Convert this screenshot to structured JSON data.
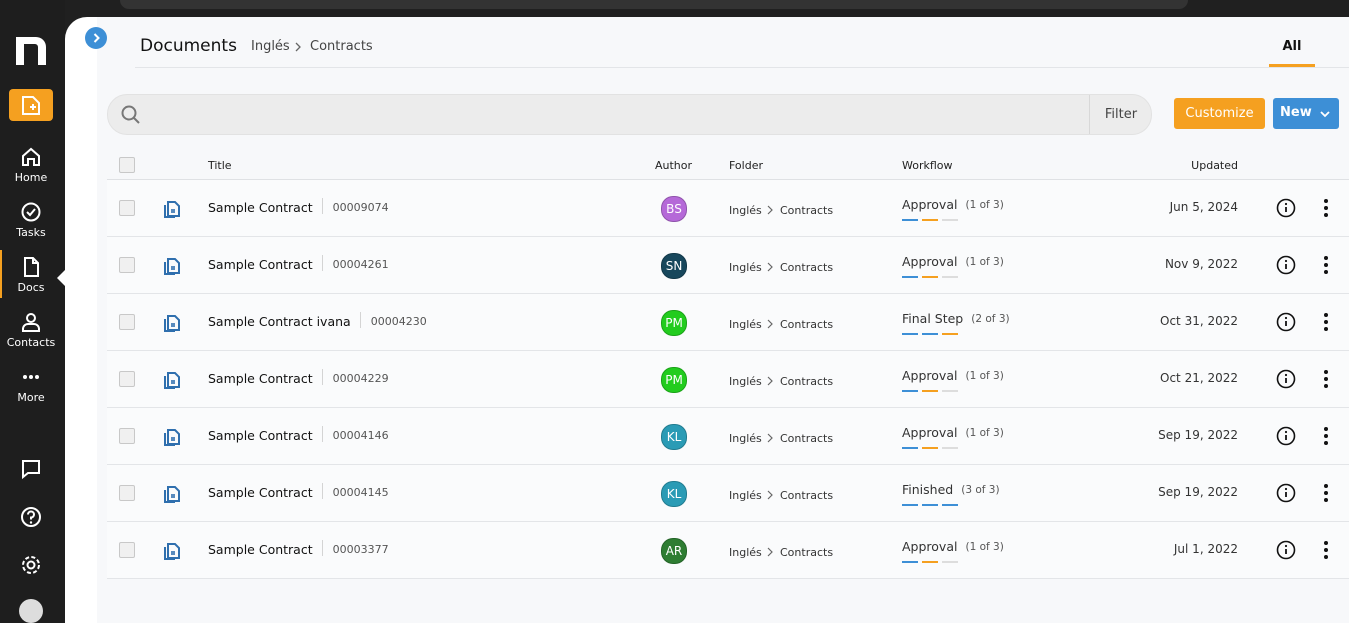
{
  "sidebar": {
    "items": [
      "Home",
      "Tasks",
      "Docs",
      "Contacts",
      "More"
    ],
    "active": 2
  },
  "header": {
    "title": "Documents",
    "breadcrumb": [
      "Inglés",
      "Contracts"
    ],
    "tab": "All"
  },
  "toolbar": {
    "filter": "Filter",
    "customize": "Customize",
    "new": "New"
  },
  "table": {
    "columns": [
      "Title",
      "Author",
      "Folder",
      "Workflow",
      "Updated"
    ],
    "rows": [
      {
        "title": "Sample Contract",
        "number": "00009074",
        "author": "BS",
        "author_color": "#b569d8",
        "folder": [
          "Inglés",
          "Contracts"
        ],
        "workflow": "Approval",
        "stage": "(1 of 3)",
        "bars": [
          "#3d8fd6",
          "#f5a020",
          "#dddddd"
        ],
        "updated": "Jun 5, 2024"
      },
      {
        "title": "Sample Contract",
        "number": "00004261",
        "author": "SN",
        "author_color": "#17475c",
        "folder": [
          "Inglés",
          "Contracts"
        ],
        "workflow": "Approval",
        "stage": "(1 of 3)",
        "bars": [
          "#3d8fd6",
          "#f5a020",
          "#dddddd"
        ],
        "updated": "Nov 9, 2022"
      },
      {
        "title": "Sample Contract ivana",
        "number": "00004230",
        "author": "PM",
        "author_color": "#22cc1e",
        "folder": [
          "Inglés",
          "Contracts"
        ],
        "workflow": "Final Step",
        "stage": "(2 of 3)",
        "bars": [
          "#3d8fd6",
          "#3d8fd6",
          "#f5a020"
        ],
        "updated": "Oct 31, 2022"
      },
      {
        "title": "Sample Contract",
        "number": "00004229",
        "author": "PM",
        "author_color": "#22cc1e",
        "folder": [
          "Inglés",
          "Contracts"
        ],
        "workflow": "Approval",
        "stage": "(1 of 3)",
        "bars": [
          "#3d8fd6",
          "#f5a020",
          "#dddddd"
        ],
        "updated": "Oct 21, 2022"
      },
      {
        "title": "Sample Contract",
        "number": "00004146",
        "author": "KL",
        "author_color": "#2a9bb5",
        "folder": [
          "Inglés",
          "Contracts"
        ],
        "workflow": "Approval",
        "stage": "(1 of 3)",
        "bars": [
          "#3d8fd6",
          "#f5a020",
          "#dddddd"
        ],
        "updated": "Sep 19, 2022"
      },
      {
        "title": "Sample Contract",
        "number": "00004145",
        "author": "KL",
        "author_color": "#2a9bb5",
        "folder": [
          "Inglés",
          "Contracts"
        ],
        "workflow": "Finished",
        "stage": "(3 of 3)",
        "bars": [
          "#3d8fd6",
          "#3d8fd6",
          "#3d8fd6"
        ],
        "updated": "Sep 19, 2022"
      },
      {
        "title": "Sample Contract",
        "number": "00003377",
        "author": "AR",
        "author_color": "#2e7d32",
        "folder": [
          "Inglés",
          "Contracts"
        ],
        "workflow": "Approval",
        "stage": "(1 of 3)",
        "bars": [
          "#3d8fd6",
          "#f5a020",
          "#dddddd"
        ],
        "updated": "Jul 1, 2022"
      }
    ]
  }
}
